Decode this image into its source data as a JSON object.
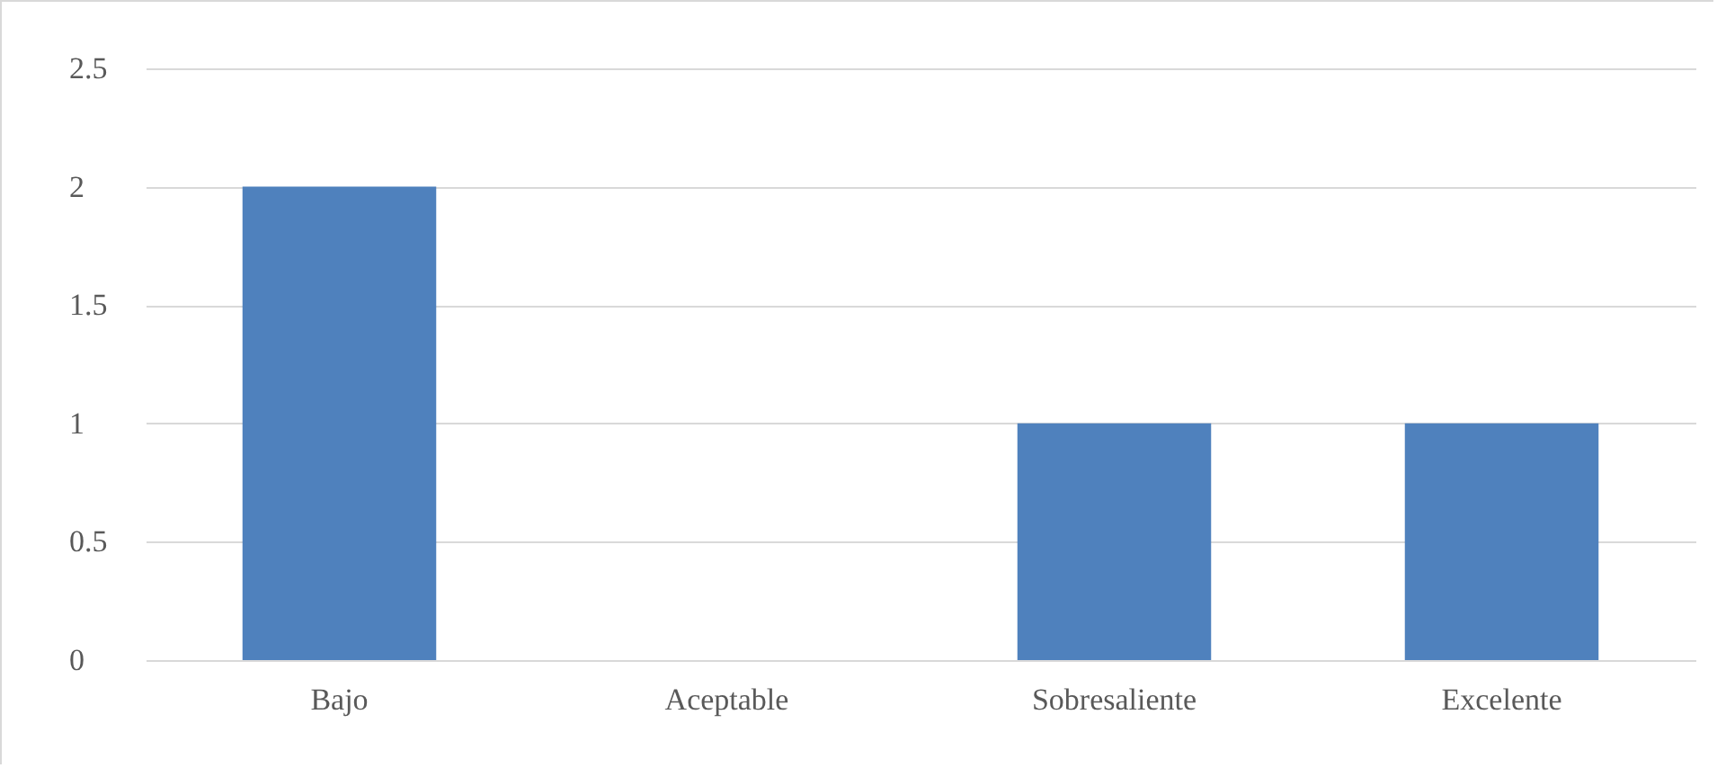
{
  "chart_data": {
    "type": "bar",
    "categories": [
      "Bajo",
      "Aceptable",
      "Sobresaliente",
      "Excelente"
    ],
    "values": [
      2,
      0,
      1,
      1
    ],
    "color": "#4f81bd",
    "ylim": [
      0,
      2.5
    ],
    "yticks": [
      0,
      0.5,
      1,
      1.5,
      2,
      2.5
    ],
    "grid": "y"
  }
}
